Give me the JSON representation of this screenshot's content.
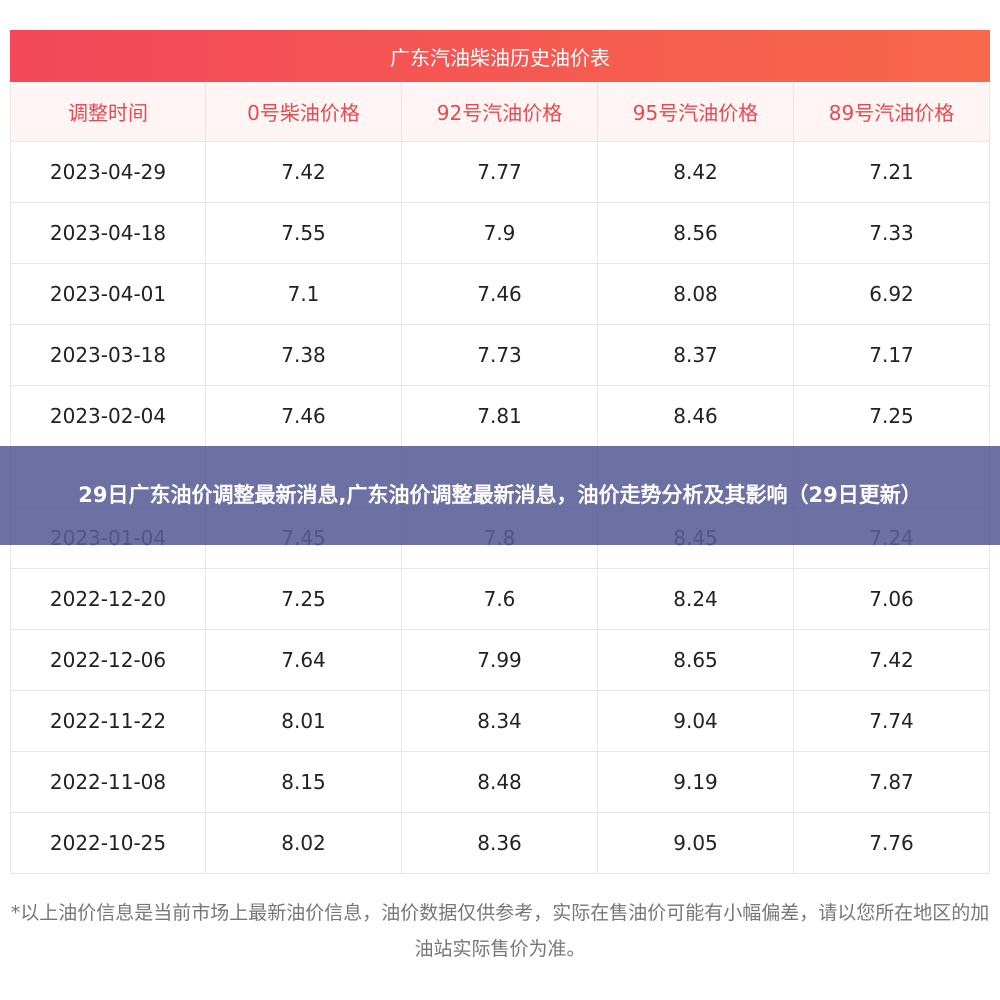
{
  "table": {
    "title": "广东汽油柴油历史油价表",
    "header": [
      "调整时间",
      "0号柴油价格",
      "92号汽油价格",
      "95号汽油价格",
      "89号汽油价格"
    ],
    "rows": [
      [
        "2023-04-29",
        7.42,
        7.77,
        8.42,
        7.21
      ],
      [
        "2023-04-18",
        7.55,
        7.9,
        8.56,
        7.33
      ],
      [
        "2023-04-01",
        7.1,
        7.46,
        8.08,
        6.92
      ],
      [
        "2023-03-18",
        7.38,
        7.73,
        8.37,
        7.17
      ],
      [
        "2023-02-04",
        7.46,
        7.81,
        8.46,
        7.25
      ],
      [
        "2023-01-04",
        7.45,
        7.8,
        8.45,
        7.24
      ],
      [
        "2022-12-20",
        7.25,
        7.6,
        8.24,
        7.06
      ],
      [
        "2022-12-06",
        7.64,
        7.99,
        8.65,
        7.42
      ],
      [
        "2022-11-22",
        8.01,
        8.34,
        9.04,
        7.74
      ],
      [
        "2022-11-08",
        8.15,
        8.48,
        9.19,
        7.87
      ],
      [
        "2022-10-25",
        8.02,
        8.36,
        9.05,
        7.76
      ]
    ],
    "note": "*以上油价信息是当前市场上最新油价信息，油价数据仅供参考，实际在售油价可能有小幅偏差，请以您所在地区的加油站实际售价为准。"
  },
  "banner": {
    "text": "29日广东油价调整最新消息,广东油价调整最新消息，油价走势分析及其影响（29日更新）"
  }
}
